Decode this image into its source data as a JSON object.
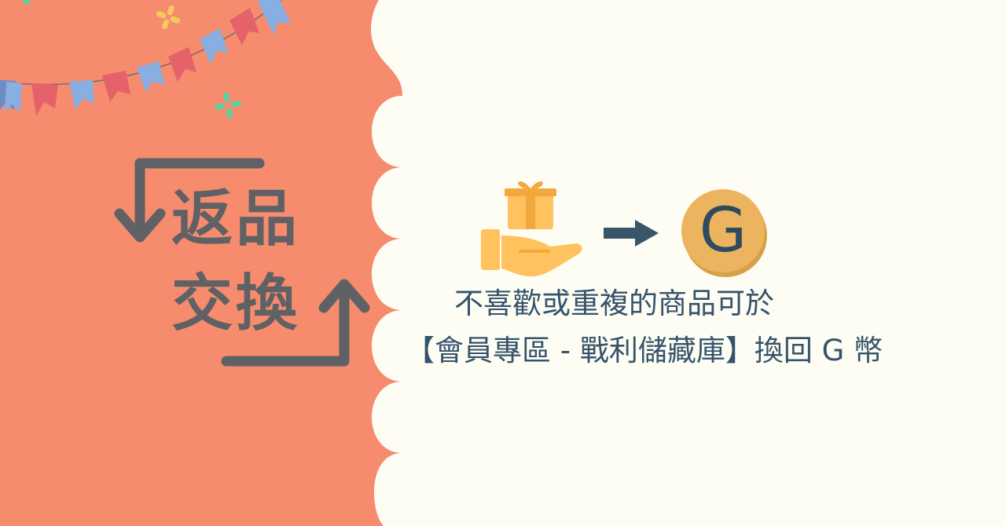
{
  "title": {
    "line1": "返品",
    "line2": "交換"
  },
  "description": {
    "line1": "不喜歡或重複的商品可於",
    "line2": "【會員專區 - 戰利儲藏庫】換回 G 幣"
  },
  "coin": {
    "letter": "G"
  },
  "icons": {
    "exchange_arrows": "return-exchange-arrows-icon",
    "gift_hand": "gift-on-hand-icon",
    "arrow": "arrow-right-icon",
    "coin": "g-coin-icon"
  },
  "colors": {
    "left_panel": "#f68b6d",
    "right_panel": "#fefdf4",
    "title_text": "#5f6165",
    "caption_text": "#35536b",
    "coin_gold": "#ecb45f",
    "gift_yellow": "#ffc25e",
    "arrow_navy": "#375669",
    "bunting_red": "#e5626b",
    "bunting_blue": "#89aee2"
  }
}
